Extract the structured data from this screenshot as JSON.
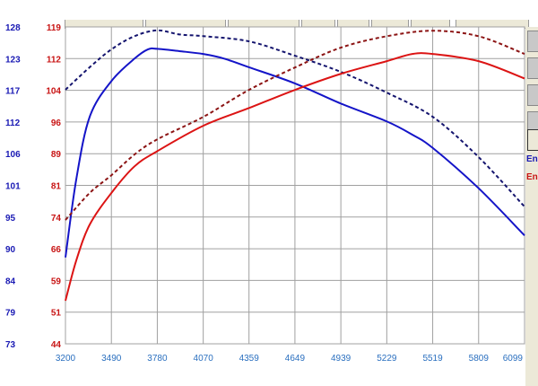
{
  "chart_data": {
    "type": "line",
    "x_ticks": [
      3200,
      3490,
      3780,
      4070,
      4359,
      4649,
      4939,
      5229,
      5519,
      5809,
      6099
    ],
    "xlim": [
      3200,
      6099
    ],
    "left_axis_blue": {
      "ticks": [
        128,
        123,
        117,
        112,
        106,
        101,
        95,
        90,
        84,
        79,
        73
      ],
      "ylim": [
        73,
        128
      ],
      "color": "#1a1ab4"
    },
    "left_axis_red": {
      "ticks": [
        119,
        112,
        104,
        96,
        89,
        81,
        74,
        66,
        59,
        51,
        44
      ],
      "ylim": [
        44,
        119
      ],
      "color": "#c81414"
    },
    "grid": true,
    "series": [
      {
        "axis": "blue",
        "style": "solid",
        "color": "#1414c8",
        "x": [
          3200,
          3268,
          3353,
          3490,
          3636,
          3720,
          3780,
          3919,
          4070,
          4202,
          4359,
          4649,
          4939,
          5229,
          5390,
          5519,
          5809,
          6099
        ],
        "y": [
          88.0,
          101.5,
          112.4,
          118.6,
          122.5,
          124.1,
          124.2,
          123.8,
          123.3,
          122.5,
          121.0,
          118.2,
          114.7,
          111.6,
          109.3,
          107.0,
          100.0,
          91.8
        ]
      },
      {
        "axis": "blue",
        "style": "dashed",
        "color": "#14146e",
        "x": [
          3200,
          3353,
          3490,
          3636,
          3780,
          3919,
          4070,
          4359,
          4649,
          4939,
          5229,
          5519,
          5809,
          6099
        ],
        "y": [
          117.1,
          121.0,
          124.1,
          126.4,
          127.4,
          126.7,
          126.4,
          125.5,
          123.0,
          120.2,
          116.6,
          112.4,
          105.4,
          96.8
        ]
      },
      {
        "axis": "red",
        "style": "solid",
        "color": "#dc1414",
        "x": [
          3200,
          3268,
          3353,
          3490,
          3636,
          3780,
          4070,
          4359,
          4649,
          4939,
          5229,
          5390,
          5519,
          5809,
          6099
        ],
        "y": [
          54.2,
          63.7,
          72.2,
          79.7,
          86.0,
          89.6,
          95.6,
          99.8,
          104.1,
          107.9,
          110.9,
          112.6,
          112.6,
          110.9,
          106.8
        ]
      },
      {
        "axis": "red",
        "style": "dashed",
        "color": "#8c1414",
        "x": [
          3200,
          3353,
          3490,
          3636,
          3780,
          4070,
          4359,
          4649,
          4939,
          5229,
          5519,
          5809,
          6099
        ],
        "y": [
          73.3,
          79.7,
          83.9,
          88.8,
          92.4,
          97.7,
          104.1,
          109.4,
          114.1,
          116.8,
          118.1,
          116.8,
          112.6
        ]
      }
    ]
  },
  "side_panel": {
    "label_blue": "En",
    "label_red": "En"
  }
}
